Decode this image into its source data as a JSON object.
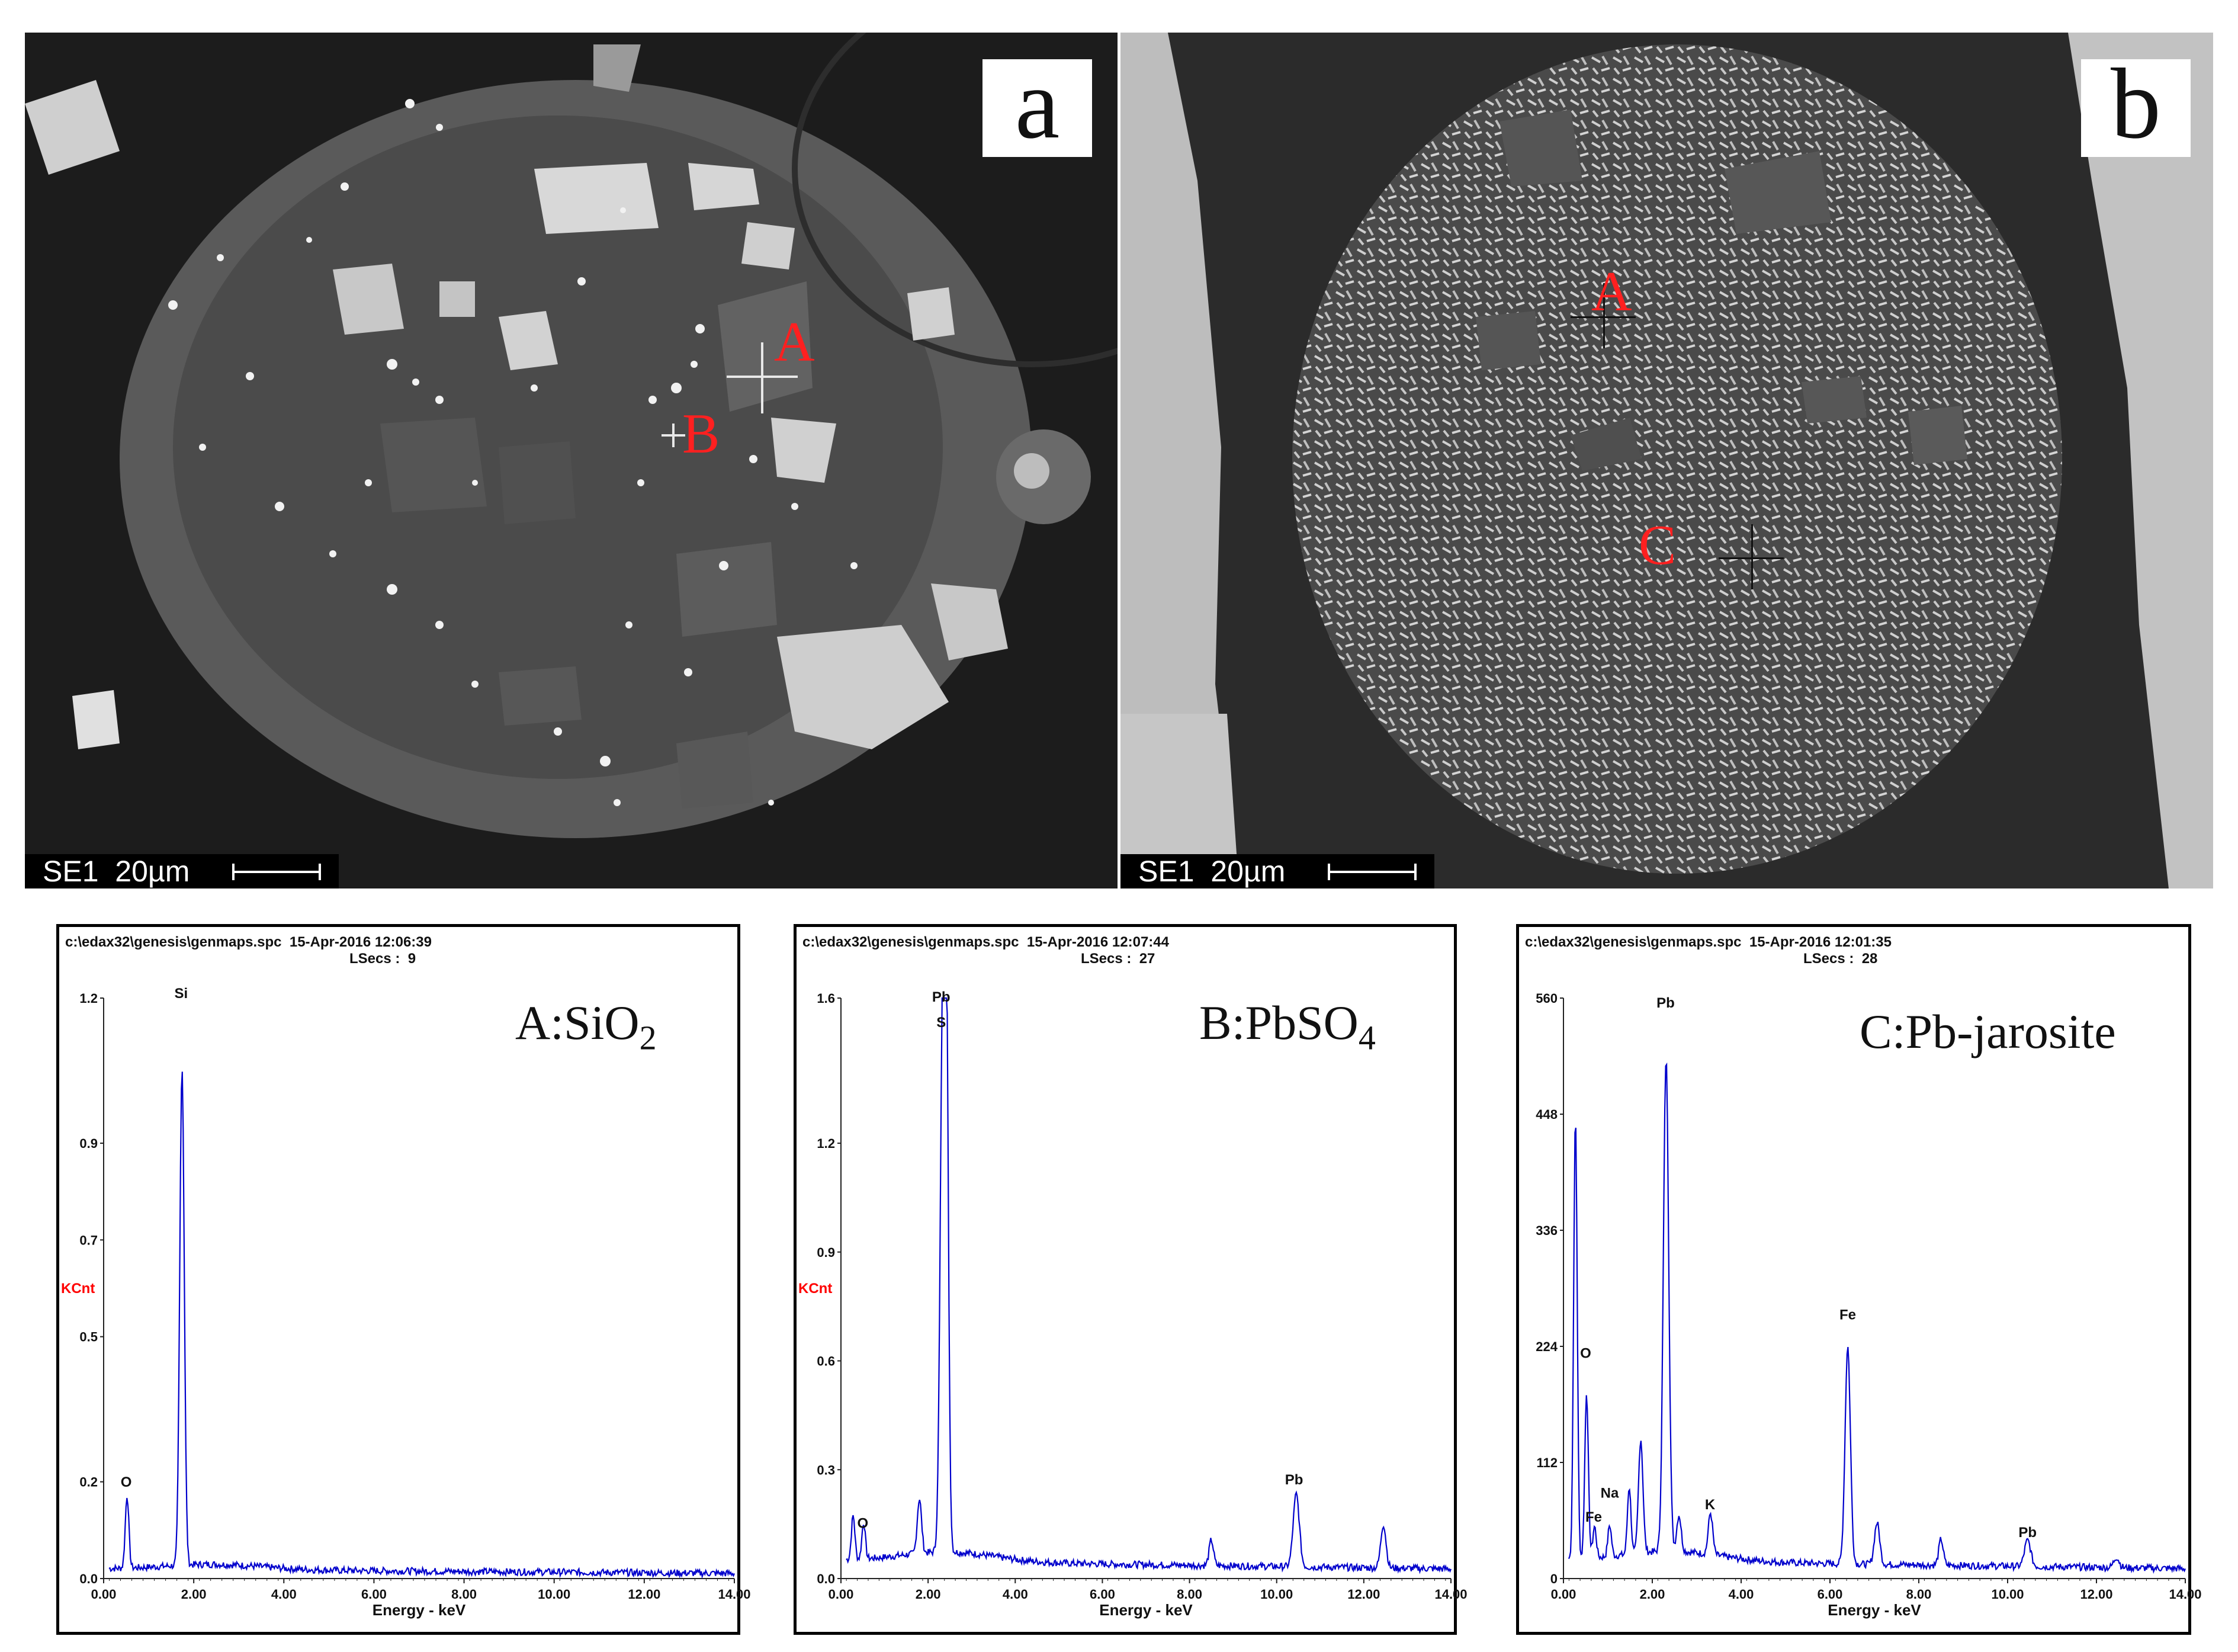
{
  "sem_panels": [
    {
      "id": "a",
      "letter": "a",
      "scale_label": "SE1  20µm",
      "markers": [
        "A",
        "B"
      ]
    },
    {
      "id": "b",
      "letter": "b",
      "scale_label": "SE1  20µm",
      "markers": [
        "A",
        "C"
      ]
    }
  ],
  "colors": {
    "spectrum": "#0000cc",
    "marker": "#ff2020",
    "kcnt": "#ff0000"
  },
  "chart_data": [
    {
      "type": "line",
      "header": "c:\\edax32\\genesis\\genmaps.spc  15-Apr-2016 12:06:39",
      "lsecs": "LSecs :  9",
      "phase_prefix": "A:SiO",
      "phase_sub": "2",
      "phase_suffix": "",
      "ylabel": "KCnt",
      "xlabel": "Energy - keV",
      "xlim": [
        0,
        14
      ],
      "ylim": [
        0,
        1.2
      ],
      "xticks": [
        "0.00",
        "2.00",
        "4.00",
        "6.00",
        "8.00",
        "10.00",
        "12.00",
        "14.00"
      ],
      "yticks": [
        {
          "v": 0,
          "t": "0.0"
        },
        {
          "v": 0.2,
          "t": "0.2"
        },
        {
          "v": 0.5,
          "t": "0.5"
        },
        {
          "v": 0.7,
          "t": "0.7"
        },
        {
          "v": 0.9,
          "t": "0.9"
        },
        {
          "v": 1.2,
          "t": "1.2"
        }
      ],
      "baseline": 0.02,
      "peaks": [
        {
          "x": 0.52,
          "y": 0.15,
          "w": 0.04
        },
        {
          "x": 1.74,
          "y": 1.03,
          "w": 0.05
        }
      ],
      "labels": [
        {
          "text": "O",
          "x": 0.5,
          "y": 0.19
        },
        {
          "text": "Si",
          "x": 1.72,
          "y": 1.2
        }
      ]
    },
    {
      "type": "line",
      "header": "c:\\edax32\\genesis\\genmaps.spc  15-Apr-2016 12:07:44",
      "lsecs": "LSecs :  27",
      "phase_prefix": "B:PbSO",
      "phase_sub": "4",
      "phase_suffix": "",
      "ylabel": "KCnt",
      "xlabel": "Energy - keV",
      "xlim": [
        0,
        14
      ],
      "ylim": [
        0,
        1.6
      ],
      "xticks": [
        "0.00",
        "2.00",
        "4.00",
        "6.00",
        "8.00",
        "10.00",
        "12.00",
        "14.00"
      ],
      "yticks": [
        {
          "v": 0,
          "t": "0.0"
        },
        {
          "v": 0.3,
          "t": "0.3"
        },
        {
          "v": 0.6,
          "t": "0.6"
        },
        {
          "v": 0.9,
          "t": "0.9"
        },
        {
          "v": 1.2,
          "t": "1.2"
        },
        {
          "v": 1.6,
          "t": "1.6"
        }
      ],
      "baseline": 0.05,
      "peaks": [
        {
          "x": 0.28,
          "y": 0.12,
          "w": 0.04
        },
        {
          "x": 0.52,
          "y": 0.1,
          "w": 0.04
        },
        {
          "x": 1.8,
          "y": 0.15,
          "w": 0.05
        },
        {
          "x": 2.34,
          "y": 1.48,
          "w": 0.06
        },
        {
          "x": 2.42,
          "y": 1.2,
          "w": 0.05
        },
        {
          "x": 8.5,
          "y": 0.07,
          "w": 0.05
        },
        {
          "x": 10.45,
          "y": 0.2,
          "w": 0.07
        },
        {
          "x": 12.45,
          "y": 0.12,
          "w": 0.06
        }
      ],
      "labels": [
        {
          "text": "O",
          "x": 0.5,
          "y": 0.14
        },
        {
          "text": "Pb",
          "x": 2.3,
          "y": 1.59
        },
        {
          "text": "S",
          "x": 2.3,
          "y": 1.52
        },
        {
          "text": "Pb",
          "x": 10.4,
          "y": 0.26
        }
      ]
    },
    {
      "type": "line",
      "header": "c:\\edax32\\genesis\\genmaps.spc  15-Apr-2016 12:01:35",
      "lsecs": "LSecs :  28",
      "phase_prefix": "C:Pb-jarosite",
      "phase_sub": "",
      "phase_suffix": "",
      "ylabel": "",
      "xlabel": "Energy - keV",
      "xlim": [
        0,
        14
      ],
      "ylim": [
        0,
        560
      ],
      "xticks": [
        "0.00",
        "2.00",
        "4.00",
        "6.00",
        "8.00",
        "10.00",
        "12.00",
        "14.00"
      ],
      "yticks": [
        {
          "v": 0,
          "t": "0"
        },
        {
          "v": 112,
          "t": "112"
        },
        {
          "v": 224,
          "t": "224"
        },
        {
          "v": 336,
          "t": "336"
        },
        {
          "v": 448,
          "t": "448"
        },
        {
          "v": 560,
          "t": "560"
        }
      ],
      "baseline": 18,
      "peaks": [
        {
          "x": 0.27,
          "y": 425,
          "w": 0.04
        },
        {
          "x": 0.52,
          "y": 160,
          "w": 0.04
        },
        {
          "x": 0.7,
          "y": 30,
          "w": 0.04
        },
        {
          "x": 1.04,
          "y": 30,
          "w": 0.04
        },
        {
          "x": 1.48,
          "y": 65,
          "w": 0.04
        },
        {
          "x": 1.74,
          "y": 110,
          "w": 0.05
        },
        {
          "x": 2.31,
          "y": 475,
          "w": 0.06
        },
        {
          "x": 2.6,
          "y": 35,
          "w": 0.05
        },
        {
          "x": 3.31,
          "y": 40,
          "w": 0.05
        },
        {
          "x": 6.4,
          "y": 210,
          "w": 0.06
        },
        {
          "x": 7.06,
          "y": 40,
          "w": 0.06
        },
        {
          "x": 8.5,
          "y": 25,
          "w": 0.05
        },
        {
          "x": 10.45,
          "y": 25,
          "w": 0.07
        },
        {
          "x": 12.45,
          "y": 10,
          "w": 0.06
        }
      ],
      "labels": [
        {
          "text": "O",
          "x": 0.5,
          "y": 213
        },
        {
          "text": "Fe",
          "x": 0.68,
          "y": 55
        },
        {
          "text": "Na",
          "x": 1.04,
          "y": 78
        },
        {
          "text": "K",
          "x": 3.3,
          "y": 67
        },
        {
          "text": "Fe",
          "x": 6.4,
          "y": 250
        },
        {
          "text": "Pb",
          "x": 2.3,
          "y": 551
        },
        {
          "text": "Pb",
          "x": 10.45,
          "y": 40
        }
      ]
    }
  ]
}
